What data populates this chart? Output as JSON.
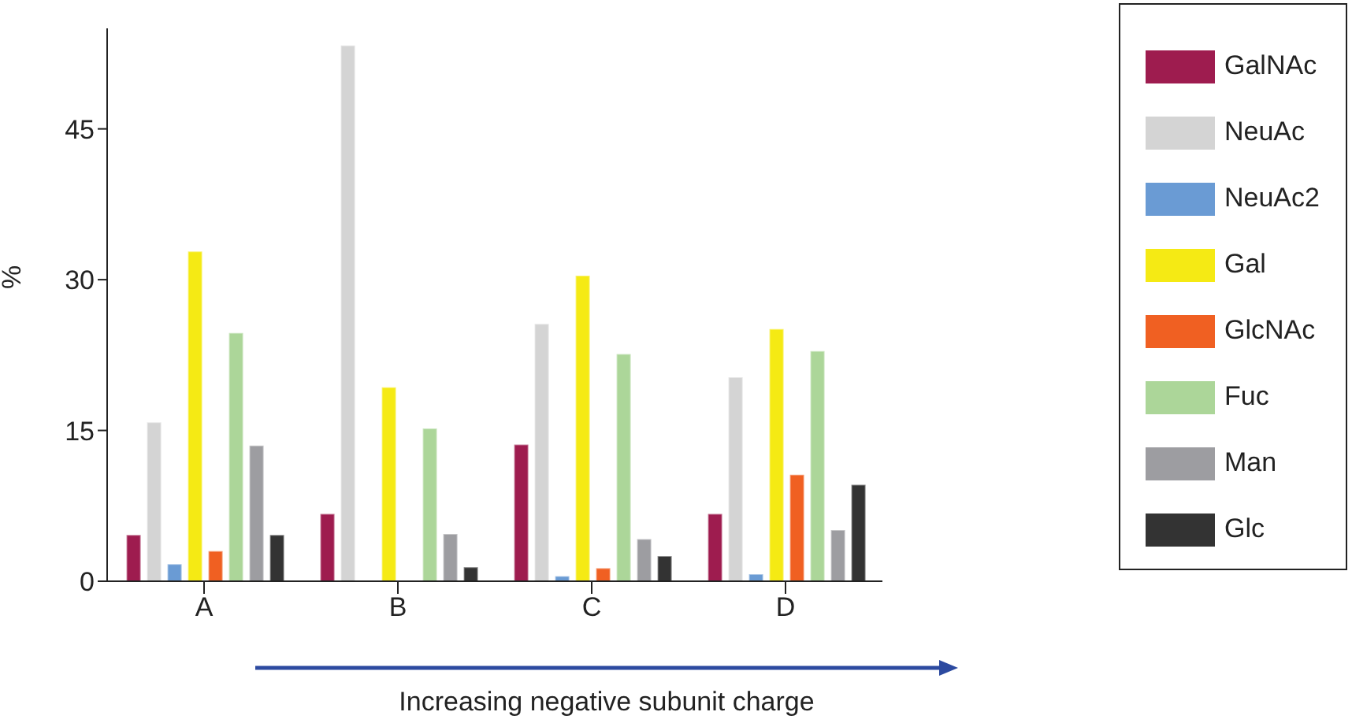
{
  "chart_data": {
    "type": "bar",
    "xlabel": "Increasing negative subunit charge",
    "ylabel": "%",
    "categories": [
      "A",
      "B",
      "C",
      "D"
    ],
    "ylim": [
      0,
      55
    ],
    "yticks": [
      0,
      15,
      30,
      45
    ],
    "grid": false,
    "legend": "right",
    "series": [
      {
        "name": "GalNAc",
        "color": "#9e1c4f",
        "values": [
          4.6,
          6.7,
          13.6,
          6.7
        ]
      },
      {
        "name": "NeuAc",
        "color": "#d4d4d4",
        "values": [
          15.8,
          53.3,
          25.6,
          20.3
        ]
      },
      {
        "name": "NeuAc2",
        "color": "#6a9bd4",
        "values": [
          1.7,
          null,
          0.5,
          0.7
        ]
      },
      {
        "name": "Gal",
        "color": "#f5ea14",
        "values": [
          32.8,
          19.3,
          30.4,
          25.1
        ]
      },
      {
        "name": "GlcNAc",
        "color": "#f06022",
        "values": [
          3.0,
          null,
          1.3,
          10.6
        ]
      },
      {
        "name": "Fuc",
        "color": "#acd699",
        "values": [
          24.7,
          15.2,
          22.6,
          22.9
        ]
      },
      {
        "name": "Man",
        "color": "#9d9da1",
        "values": [
          13.5,
          4.7,
          4.2,
          5.1
        ]
      },
      {
        "name": "Glc",
        "color": "#333333",
        "values": [
          4.6,
          1.4,
          2.5,
          9.6
        ]
      }
    ]
  }
}
